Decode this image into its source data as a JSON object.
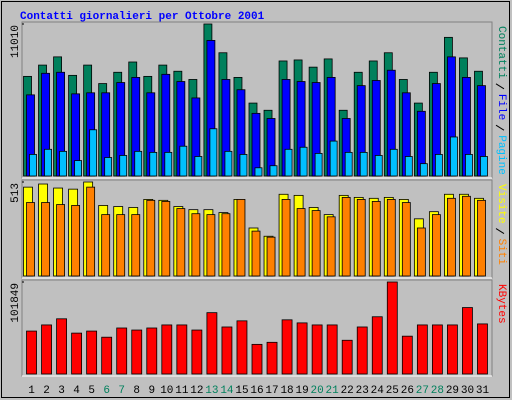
{
  "chart_data": [
    {
      "type": "bar",
      "title": "Contatti giornalieri per Ottobre 2001",
      "ylim": [
        0,
        11010
      ],
      "yticks": [
        11010
      ],
      "series": [
        {
          "name": "Contatti",
          "color": "#00805c",
          "values": [
            7216,
            8034,
            8629,
            7290,
            8034,
            6695,
            7513,
            8257,
            7216,
            8034,
            7588,
            6993,
            11010,
            8927,
            7142,
            5282,
            4761,
            8332,
            8406,
            7885,
            8481,
            4761,
            7513,
            8332,
            8927,
            6993,
            5282,
            7513,
            10043,
            8555,
            7588
          ]
        },
        {
          "name": "File",
          "color": "#0000ff",
          "values": [
            5877,
            7439,
            7513,
            5951,
            6026,
            6026,
            6770,
            7142,
            6026,
            7365,
            6844,
            5654,
            9820,
            6993,
            6249,
            4538,
            4166,
            6993,
            6844,
            6770,
            7142,
            4166,
            6546,
            6918,
            7662,
            6026,
            4687,
            6695,
            8629,
            7142,
            6546
          ]
        },
        {
          "name": "Pagine",
          "color": "#00c0ff",
          "values": [
            1562,
            1934,
            1785,
            1116,
            3348,
            1339,
            1488,
            1785,
            1711,
            1711,
            2157,
            1413,
            3422,
            1785,
            1562,
            595,
            744,
            1934,
            2083,
            1637,
            2529,
            1711,
            1711,
            1488,
            1934,
            1413,
            893,
            1562,
            2827,
            1562,
            1413
          ]
        }
      ]
    },
    {
      "type": "bar",
      "ylim": [
        0,
        513
      ],
      "yticks": [
        513
      ],
      "series": [
        {
          "name": "Visite",
          "color": "#ffff00",
          "values": [
            485,
            502,
            480,
            474,
            513,
            385,
            379,
            374,
            418,
            413,
            379,
            362,
            362,
            346,
            418,
            262,
            217,
            446,
            440,
            374,
            335,
            440,
            429,
            424,
            429,
            418,
            312,
            351,
            446,
            446,
            424
          ]
        },
        {
          "name": "Siti",
          "color": "#ff8000",
          "values": [
            401,
            401,
            390,
            385,
            485,
            335,
            335,
            335,
            413,
            407,
            368,
            340,
            335,
            340,
            418,
            245,
            212,
            418,
            368,
            357,
            323,
            429,
            418,
            407,
            418,
            401,
            262,
            335,
            424,
            435,
            413
          ]
        }
      ]
    },
    {
      "type": "bar",
      "categories": [
        "1",
        "2",
        "3",
        "4",
        "5",
        "6",
        "7",
        "8",
        "9",
        "10",
        "11",
        "12",
        "13",
        "14",
        "15",
        "16",
        "17",
        "18",
        "19",
        "20",
        "21",
        "22",
        "23",
        "24",
        "25",
        "26",
        "27",
        "28",
        "29",
        "30",
        "31"
      ],
      "ylim": [
        0,
        101849
      ],
      "yticks": [
        101849
      ],
      "series": [
        {
          "name": "KBytes",
          "color": "#ff0000",
          "values": [
            47531,
            54322,
            61112,
            45268,
            47531,
            40741,
            50927,
            48663,
            50927,
            54322,
            54322,
            48663,
            67902,
            52058,
            58848,
            32819,
            35083,
            59980,
            56585,
            54322,
            54322,
            37346,
            52058,
            63375,
            101849,
            41873,
            54322,
            54322,
            54322,
            73561,
            55453
          ]
        }
      ]
    }
  ]
}
